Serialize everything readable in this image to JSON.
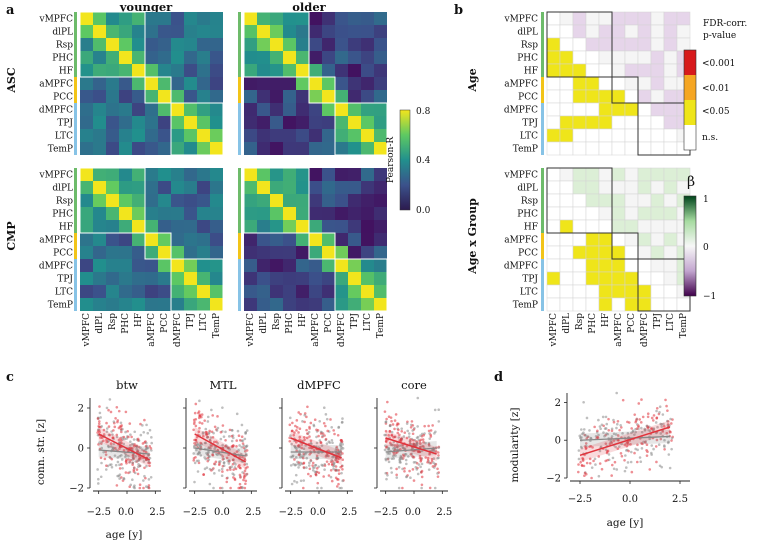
{
  "panel_labels": {
    "a": "a",
    "b": "b",
    "c": "c",
    "d": "d"
  },
  "panel_a": {
    "col_titles": [
      "younger",
      "older"
    ],
    "row_titles": [
      "ASC",
      "CMP"
    ],
    "regions": [
      "vMPFC",
      "dlPL",
      "Rsp",
      "PHC",
      "HF",
      "aMPFC",
      "PCC",
      "dMPFC",
      "TPJ",
      "LTC",
      "TemP"
    ],
    "colorbar": {
      "label": "Pearson-R",
      "ticks": [
        "0.8",
        "0.4",
        "0.0"
      ]
    }
  },
  "panel_b": {
    "row_titles": [
      "Age",
      "Age x Group"
    ],
    "regions": [
      "vMPFC",
      "dlPL",
      "Rsp",
      "PHC",
      "HF",
      "aMPFC",
      "PCC",
      "dMPFC",
      "TPJ",
      "LTC",
      "TemP"
    ],
    "legend_fdr": {
      "title_line1": "FDR-corr.",
      "title_line2": "p-value",
      "labels": [
        "<0.001",
        "<0.01",
        "<0.05",
        "n.s."
      ]
    },
    "legend_beta": {
      "symbol": "β",
      "ticks": [
        "1",
        "0",
        "−1"
      ]
    }
  },
  "panel_c": {
    "titles": [
      "btw",
      "MTL",
      "dMPFC",
      "core"
    ],
    "ylabel": "conn. str. [z]",
    "xlabel": "age [y]",
    "yticks": [
      "2",
      "0",
      "−2"
    ],
    "xticks": [
      "−2.5",
      "0.0",
      "2.5"
    ],
    "xtick_label_compact": "−2.50.0 2.5"
  },
  "panel_d": {
    "ylabel": "modularity [z]",
    "xlabel": "age [y]",
    "yticks": [
      "2",
      "0",
      "−2"
    ],
    "xticks": [
      "−2.5",
      "0.0",
      "2.5"
    ]
  },
  "colors": {
    "red": "#e0333c",
    "gray": "#8a8a8a",
    "yellow": "#efe51a",
    "orange": "#f5a623",
    "darkred": "#d7191c",
    "purple": "#e4d4ea",
    "green": "#d6ebd2",
    "blue_bar": "#87c3e6",
    "green_bar": "#6dbb6a",
    "yellow_bar": "#f2c418"
  },
  "chart_data": [
    {
      "type": "heatmap",
      "title": "younger ASC",
      "colorbar_range": [
        0,
        0.8
      ]
    },
    {
      "type": "heatmap",
      "title": "older ASC",
      "colorbar_range": [
        0,
        0.8
      ]
    },
    {
      "type": "heatmap",
      "title": "younger CMP",
      "colorbar_range": [
        0,
        0.8
      ]
    },
    {
      "type": "heatmap",
      "title": "older CMP",
      "colorbar_range": [
        0,
        0.8
      ]
    },
    {
      "type": "scatter",
      "title": "btw",
      "ylim": [
        -2,
        2.5
      ],
      "xlim": [
        -3,
        3
      ],
      "fit_red": [
        [
          -2.5,
          0.7
        ],
        [
          2,
          -0.6
        ]
      ],
      "fit_gray": [
        [
          -2.5,
          -0.1
        ],
        [
          2,
          -0.3
        ]
      ]
    },
    {
      "type": "scatter",
      "title": "MTL",
      "ylim": [
        -2,
        2.5
      ],
      "xlim": [
        -3,
        3
      ],
      "fit_red": [
        [
          -2.5,
          0.7
        ],
        [
          2,
          -0.7
        ]
      ],
      "fit_gray": [
        [
          -2.5,
          0.0
        ],
        [
          2,
          -0.4
        ]
      ]
    },
    {
      "type": "scatter",
      "title": "dMPFC",
      "ylim": [
        -2,
        2.5
      ],
      "xlim": [
        -3,
        3
      ],
      "fit_red": [
        [
          -2.5,
          0.5
        ],
        [
          2,
          -0.5
        ]
      ],
      "fit_gray": [
        [
          -2.5,
          -0.2
        ],
        [
          2,
          -0.2
        ]
      ]
    },
    {
      "type": "scatter",
      "title": "core",
      "ylim": [
        -2,
        2.5
      ],
      "xlim": [
        -3,
        3
      ],
      "fit_red": [
        [
          -2.5,
          0.5
        ],
        [
          2,
          -0.3
        ]
      ],
      "fit_gray": [
        [
          -2.5,
          -0.2
        ],
        [
          2,
          0.0
        ]
      ]
    },
    {
      "type": "scatter",
      "title": "modularity",
      "ylim": [
        -2,
        2.5
      ],
      "xlim": [
        -3,
        3
      ],
      "fit_red": [
        [
          -2.5,
          -0.8
        ],
        [
          2,
          0.7
        ]
      ],
      "fit_gray": [
        [
          -2.5,
          0.0
        ],
        [
          2,
          0.2
        ]
      ]
    }
  ]
}
